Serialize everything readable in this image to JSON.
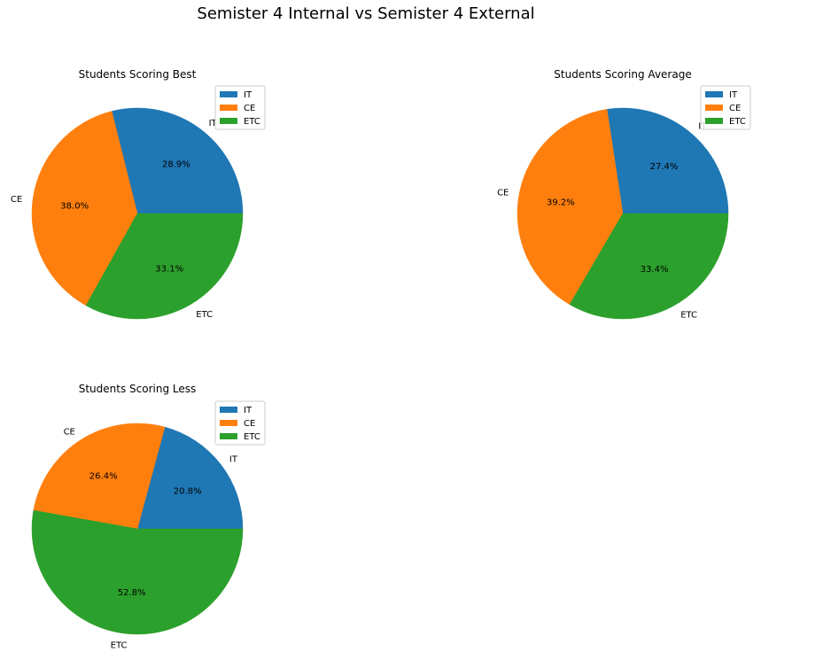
{
  "figure": {
    "suptitle": "Semister 4 Internal vs Semister 4 External"
  },
  "chart_data": [
    {
      "type": "pie",
      "title": "Students Scoring Best",
      "labels": [
        "IT",
        "CE",
        "ETC"
      ],
      "values": [
        28.9,
        38.0,
        33.1
      ],
      "percent_labels": [
        "28.9%",
        "38.0%",
        "33.1%"
      ],
      "colors": [
        "#1f77b4",
        "#ff7f0e",
        "#2ca02c"
      ],
      "legend": {
        "entries": [
          "IT",
          "CE",
          "ETC"
        ],
        "placement": "top-right"
      }
    },
    {
      "type": "pie",
      "title": "Students Scoring Average",
      "labels": [
        "IT",
        "CE",
        "ETC"
      ],
      "values": [
        27.4,
        39.2,
        33.4
      ],
      "percent_labels": [
        "27.4%",
        "39.2%",
        "33.4%"
      ],
      "colors": [
        "#1f77b4",
        "#ff7f0e",
        "#2ca02c"
      ],
      "legend": {
        "entries": [
          "IT",
          "CE",
          "ETC"
        ],
        "placement": "top-right"
      }
    },
    {
      "type": "pie",
      "title": "Students Scoring Less",
      "labels": [
        "IT",
        "CE",
        "ETC"
      ],
      "values": [
        20.8,
        26.4,
        52.8
      ],
      "percent_labels": [
        "20.8%",
        "26.4%",
        "52.8%"
      ],
      "colors": [
        "#1f77b4",
        "#ff7f0e",
        "#2ca02c"
      ],
      "legend": {
        "entries": [
          "IT",
          "CE",
          "ETC"
        ],
        "placement": "top-right"
      }
    }
  ]
}
